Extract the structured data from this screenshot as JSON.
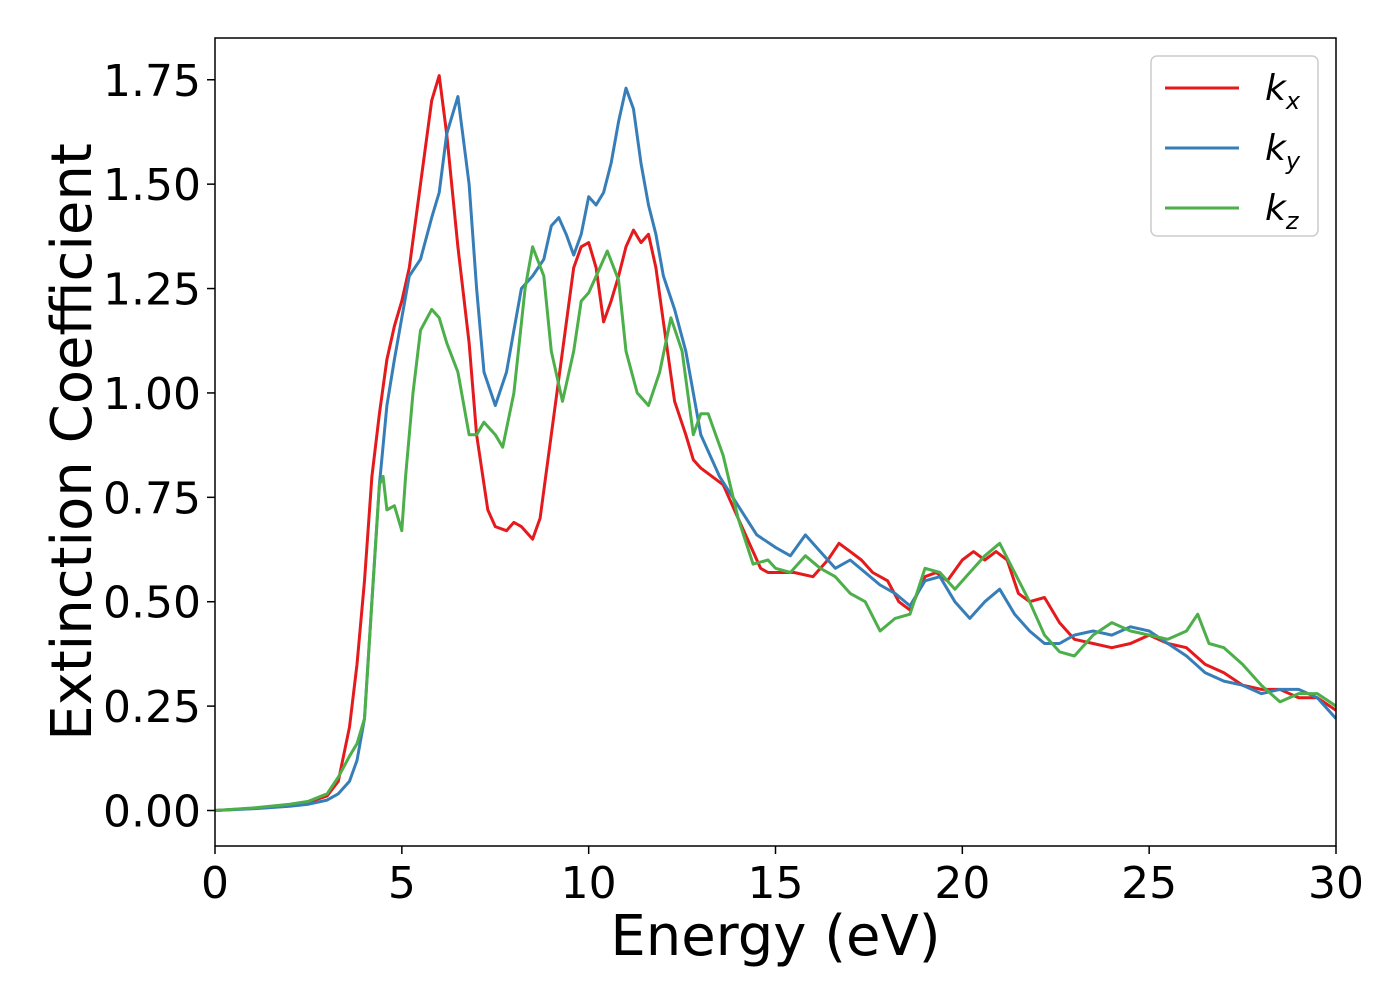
{
  "chart_data": {
    "type": "line",
    "title": "",
    "xlabel": "Energy (eV)",
    "ylabel": "Extinction Coefficient",
    "xlim": [
      0,
      30
    ],
    "ylim": [
      -0.085,
      1.85
    ],
    "xticks": [
      0,
      5,
      10,
      15,
      20,
      25,
      30
    ],
    "xtick_labels": [
      "0",
      "5",
      "10",
      "15",
      "20",
      "25",
      "30"
    ],
    "yticks": [
      0.0,
      0.25,
      0.5,
      0.75,
      1.0,
      1.25,
      1.5,
      1.75
    ],
    "ytick_labels": [
      "0.00",
      "0.25",
      "0.50",
      "0.75",
      "1.00",
      "1.25",
      "1.50",
      "1.75"
    ],
    "grid": false,
    "legend_position": "top-right",
    "series": [
      {
        "name": "k",
        "subscript": "x",
        "color": "#e41a1c",
        "x": [
          0,
          1,
          2,
          2.5,
          3,
          3.3,
          3.6,
          3.8,
          4.0,
          4.2,
          4.4,
          4.6,
          4.8,
          5.0,
          5.2,
          5.5,
          5.8,
          6.0,
          6.2,
          6.5,
          6.8,
          7.0,
          7.3,
          7.5,
          7.8,
          8.0,
          8.2,
          8.5,
          8.7,
          9.0,
          9.3,
          9.6,
          9.8,
          10.0,
          10.2,
          10.4,
          10.6,
          10.8,
          11.0,
          11.2,
          11.4,
          11.6,
          11.8,
          12.0,
          12.3,
          12.6,
          12.8,
          13.0,
          13.3,
          13.6,
          14.0,
          14.4,
          14.6,
          14.8,
          15.0,
          15.5,
          16.0,
          16.4,
          16.7,
          17.0,
          17.3,
          17.6,
          18.0,
          18.3,
          18.6,
          18.8,
          19.0,
          19.3,
          19.6,
          20.0,
          20.3,
          20.6,
          20.9,
          21.2,
          21.5,
          21.8,
          22.2,
          22.6,
          23.0,
          23.5,
          24.0,
          24.5,
          25.0,
          25.5,
          26.0,
          26.5,
          27.0,
          27.5,
          28.0,
          28.5,
          29.0,
          29.5,
          30.0
        ],
        "y": [
          0.0,
          0.005,
          0.013,
          0.02,
          0.035,
          0.07,
          0.2,
          0.35,
          0.55,
          0.8,
          0.95,
          1.08,
          1.16,
          1.22,
          1.3,
          1.5,
          1.7,
          1.76,
          1.62,
          1.35,
          1.12,
          0.9,
          0.72,
          0.68,
          0.67,
          0.69,
          0.68,
          0.65,
          0.7,
          0.9,
          1.1,
          1.3,
          1.35,
          1.36,
          1.3,
          1.17,
          1.22,
          1.28,
          1.35,
          1.39,
          1.36,
          1.38,
          1.3,
          1.17,
          0.98,
          0.9,
          0.84,
          0.82,
          0.8,
          0.78,
          0.7,
          0.62,
          0.58,
          0.57,
          0.57,
          0.57,
          0.56,
          0.6,
          0.64,
          0.62,
          0.6,
          0.57,
          0.55,
          0.5,
          0.48,
          0.52,
          0.56,
          0.57,
          0.55,
          0.6,
          0.62,
          0.6,
          0.62,
          0.6,
          0.52,
          0.5,
          0.51,
          0.45,
          0.41,
          0.4,
          0.39,
          0.4,
          0.42,
          0.4,
          0.39,
          0.35,
          0.33,
          0.3,
          0.29,
          0.29,
          0.27,
          0.27,
          0.24
        ]
      },
      {
        "name": "k",
        "subscript": "y",
        "color": "#377eb8",
        "x": [
          0,
          1,
          2,
          2.5,
          3,
          3.3,
          3.6,
          3.8,
          4.0,
          4.2,
          4.4,
          4.6,
          4.8,
          5.0,
          5.2,
          5.5,
          5.8,
          6.0,
          6.2,
          6.5,
          6.8,
          7.0,
          7.2,
          7.5,
          7.8,
          8.0,
          8.2,
          8.5,
          8.8,
          9.0,
          9.2,
          9.4,
          9.6,
          9.8,
          10.0,
          10.2,
          10.4,
          10.6,
          10.8,
          11.0,
          11.2,
          11.4,
          11.6,
          11.8,
          12.0,
          12.3,
          12.6,
          13.0,
          13.5,
          14.0,
          14.5,
          15.0,
          15.4,
          15.8,
          16.2,
          16.6,
          17.0,
          17.4,
          17.8,
          18.2,
          18.6,
          19.0,
          19.4,
          19.8,
          20.2,
          20.6,
          21.0,
          21.4,
          21.8,
          22.2,
          22.6,
          23.0,
          23.5,
          24.0,
          24.5,
          25.0,
          25.5,
          26.0,
          26.5,
          27.0,
          27.5,
          28.0,
          28.5,
          29.0,
          29.5,
          30.0
        ],
        "y": [
          0.0,
          0.004,
          0.01,
          0.015,
          0.025,
          0.04,
          0.07,
          0.12,
          0.22,
          0.5,
          0.78,
          0.97,
          1.08,
          1.18,
          1.28,
          1.32,
          1.42,
          1.48,
          1.62,
          1.71,
          1.5,
          1.25,
          1.05,
          0.97,
          1.05,
          1.15,
          1.25,
          1.28,
          1.32,
          1.4,
          1.42,
          1.38,
          1.33,
          1.38,
          1.47,
          1.45,
          1.48,
          1.55,
          1.65,
          1.73,
          1.68,
          1.55,
          1.45,
          1.38,
          1.28,
          1.2,
          1.1,
          0.9,
          0.8,
          0.73,
          0.66,
          0.63,
          0.61,
          0.66,
          0.62,
          0.58,
          0.6,
          0.57,
          0.54,
          0.52,
          0.49,
          0.55,
          0.56,
          0.5,
          0.46,
          0.5,
          0.53,
          0.47,
          0.43,
          0.4,
          0.4,
          0.42,
          0.43,
          0.42,
          0.44,
          0.43,
          0.4,
          0.37,
          0.33,
          0.31,
          0.3,
          0.28,
          0.29,
          0.29,
          0.27,
          0.22
        ]
      },
      {
        "name": "k",
        "subscript": "z",
        "color": "#4daf4a",
        "x": [
          0,
          1,
          2,
          2.5,
          3,
          3.3,
          3.6,
          3.8,
          4.0,
          4.2,
          4.4,
          4.5,
          4.6,
          4.8,
          5.0,
          5.1,
          5.3,
          5.5,
          5.8,
          6.0,
          6.2,
          6.5,
          6.8,
          7.0,
          7.2,
          7.5,
          7.7,
          8.0,
          8.3,
          8.5,
          8.8,
          9.0,
          9.3,
          9.6,
          9.8,
          10.0,
          10.3,
          10.5,
          10.8,
          11.0,
          11.3,
          11.6,
          11.9,
          12.2,
          12.5,
          12.8,
          13.0,
          13.2,
          13.6,
          14.0,
          14.4,
          14.8,
          15.0,
          15.4,
          15.8,
          16.2,
          16.6,
          17.0,
          17.4,
          17.8,
          18.2,
          18.6,
          19.0,
          19.4,
          19.8,
          20.2,
          20.6,
          21.0,
          21.4,
          21.8,
          22.2,
          22.6,
          23.0,
          23.5,
          24.0,
          24.5,
          25.0,
          25.5,
          26.0,
          26.3,
          26.6,
          27.0,
          27.5,
          28.0,
          28.5,
          29.0,
          29.5,
          30.0
        ],
        "y": [
          0.0,
          0.006,
          0.015,
          0.022,
          0.04,
          0.08,
          0.13,
          0.16,
          0.22,
          0.5,
          0.78,
          0.8,
          0.72,
          0.73,
          0.67,
          0.8,
          1.0,
          1.15,
          1.2,
          1.18,
          1.12,
          1.05,
          0.9,
          0.9,
          0.93,
          0.9,
          0.87,
          1.0,
          1.25,
          1.35,
          1.28,
          1.1,
          0.98,
          1.1,
          1.22,
          1.24,
          1.3,
          1.34,
          1.27,
          1.1,
          1.0,
          0.97,
          1.05,
          1.18,
          1.1,
          0.9,
          0.95,
          0.95,
          0.85,
          0.7,
          0.59,
          0.6,
          0.58,
          0.57,
          0.61,
          0.58,
          0.56,
          0.52,
          0.5,
          0.43,
          0.46,
          0.47,
          0.58,
          0.57,
          0.53,
          0.57,
          0.61,
          0.64,
          0.57,
          0.5,
          0.42,
          0.38,
          0.37,
          0.42,
          0.45,
          0.43,
          0.42,
          0.41,
          0.43,
          0.47,
          0.4,
          0.39,
          0.35,
          0.3,
          0.26,
          0.28,
          0.28,
          0.25
        ]
      }
    ]
  }
}
